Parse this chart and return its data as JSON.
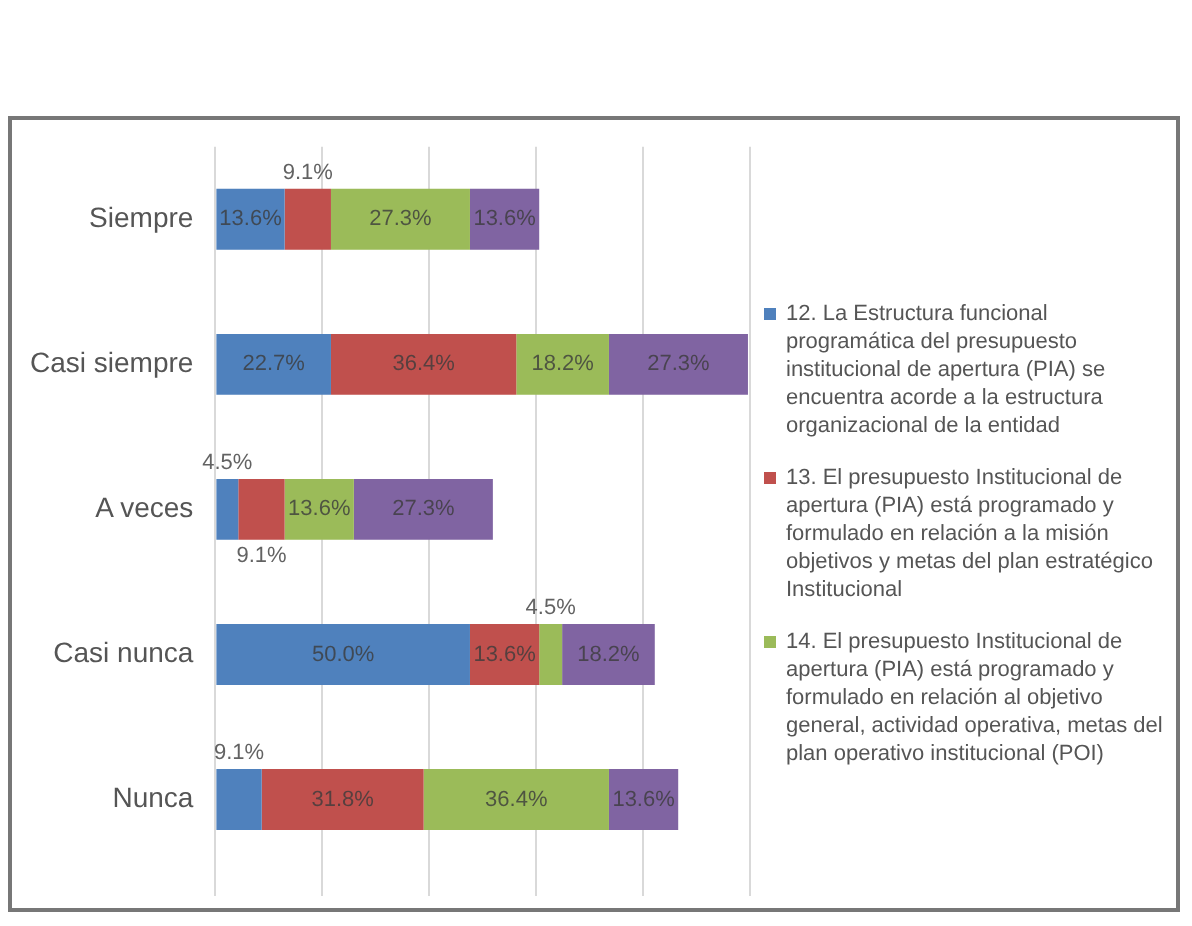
{
  "chart_data": {
    "type": "bar",
    "orientation": "horizontal",
    "stacked": true,
    "categories": [
      "Siempre",
      "Casi siempre",
      "A veces",
      "Casi nunca",
      "Nunca"
    ],
    "series": [
      {
        "name": "12. La Estructura funcional programática del presupuesto institucional de apertura (PIA) se encuentra acorde a la estructura organizacional de la entidad",
        "color": "#4f81bd",
        "values": [
          13.6,
          22.7,
          4.5,
          50.0,
          9.1
        ],
        "value_labels": [
          "13.6%",
          "22.7%",
          "4.5%",
          "50.0%",
          "9.1%"
        ]
      },
      {
        "name": "13. El presupuesto Institucional de apertura (PIA) está programado y formulado en relación a la misión objetivos y metas del plan estratégico Institucional",
        "color": "#c0504d",
        "values": [
          9.1,
          36.4,
          9.1,
          13.6,
          31.8
        ],
        "value_labels": [
          "9.1%",
          "36.4%",
          "9.1%",
          "13.6%",
          "31.8%"
        ]
      },
      {
        "name": "14. El presupuesto Institucional de apertura (PIA) está programado y formulado en relación al objetivo general, actividad operativa, metas del plan operativo institucional (POI)",
        "color": "#9bbb59",
        "values": [
          27.3,
          18.2,
          13.6,
          4.5,
          36.4
        ],
        "value_labels": [
          "27.3%",
          "18.2%",
          "13.6%",
          "4.5%",
          "36.4%"
        ]
      },
      {
        "color": "#8064a2",
        "values": [
          13.6,
          27.3,
          27.3,
          18.2,
          13.6
        ],
        "value_labels": [
          "13.6%",
          "27.3%",
          "27.3%",
          "18.2%",
          "13.6%"
        ]
      }
    ],
    "xlim": [
      0,
      105
    ],
    "xticks": [
      {
        "value": 0,
        "label": null
      },
      {
        "value": 21,
        "label": null
      },
      {
        "value": 42,
        "label": null
      },
      {
        "value": 63,
        "label": null
      },
      {
        "value": 84,
        "label": null
      },
      {
        "value": 105,
        "label": null
      }
    ],
    "grid": "x",
    "tick_labels": "y",
    "legend": "right"
  }
}
